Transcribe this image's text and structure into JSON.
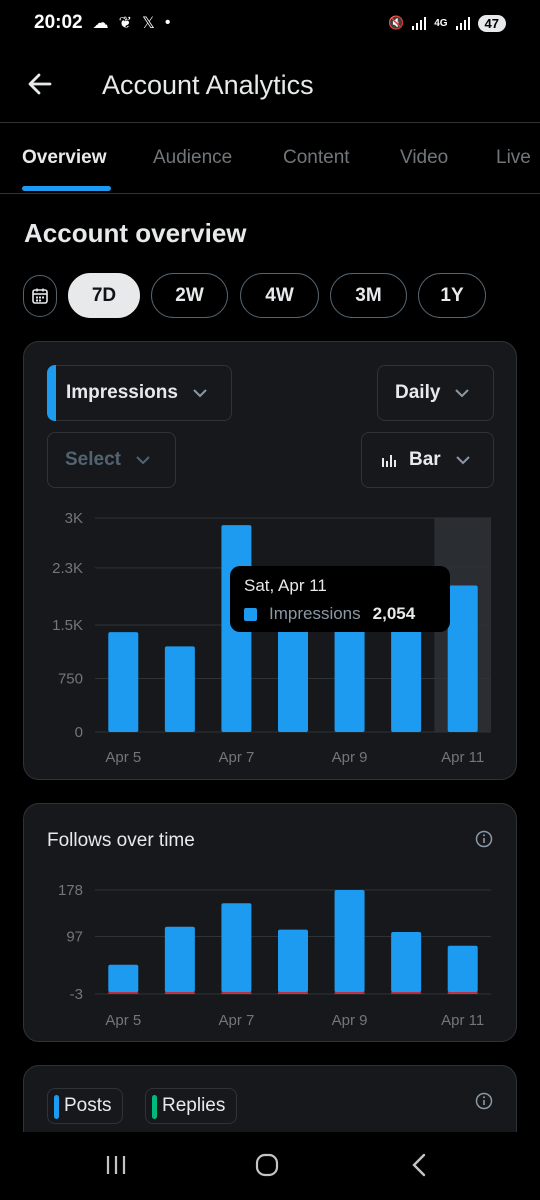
{
  "status_bar": {
    "time": "20:02",
    "battery": "47",
    "network": "4G"
  },
  "header": {
    "title": "Account Analytics"
  },
  "tabs": [
    {
      "label": "Overview",
      "active": true
    },
    {
      "label": "Audience",
      "active": false
    },
    {
      "label": "Content",
      "active": false
    },
    {
      "label": "Video",
      "active": false
    },
    {
      "label": "Live",
      "active": false
    }
  ],
  "overview": {
    "section_title": "Account overview",
    "ranges": [
      {
        "label": "7D",
        "active": true
      },
      {
        "label": "2W",
        "active": false
      },
      {
        "label": "4W",
        "active": false
      },
      {
        "label": "3M",
        "active": false
      },
      {
        "label": "1Y",
        "active": false
      }
    ],
    "metric_dropdown": "Impressions",
    "interval_dropdown": "Daily",
    "compare_dropdown_placeholder": "Select",
    "charttype_dropdown": "Bar",
    "tooltip": {
      "date": "Sat, Apr 11",
      "series": "Impressions",
      "value": "2,054"
    }
  },
  "follows_card": {
    "title": "Follows over time"
  },
  "posts_card": {
    "legend": [
      "Posts",
      "Replies"
    ]
  },
  "colors": {
    "accent": "#1d9bf0",
    "negative": "#f4212e",
    "replies": "#00ba7c",
    "card_bg": "#16181c"
  },
  "chart_data": [
    {
      "type": "bar",
      "title": "",
      "categories": [
        "Apr 5",
        "Apr 6",
        "Apr 7",
        "Apr 8",
        "Apr 9",
        "Apr 10",
        "Apr 11"
      ],
      "tick_labels_x": [
        "Apr 5",
        "",
        "Apr 7",
        "",
        "Apr 9",
        "",
        "Apr 11"
      ],
      "series": [
        {
          "name": "Impressions",
          "values": [
            1400,
            1200,
            2900,
            1600,
            1550,
            1500,
            2054
          ]
        }
      ],
      "y_ticks": [
        0,
        750,
        1500,
        2300,
        3000
      ],
      "y_tick_labels": [
        "0",
        "750",
        "1.5K",
        "2.3K",
        "3K"
      ],
      "ylim": [
        0,
        3000
      ],
      "highlight_index": 6,
      "grid": true
    },
    {
      "type": "bar",
      "title": "Follows over time",
      "categories": [
        "Apr 5",
        "Apr 6",
        "Apr 7",
        "Apr 8",
        "Apr 9",
        "Apr 10",
        "Apr 11"
      ],
      "tick_labels_x": [
        "Apr 5",
        "",
        "Apr 7",
        "",
        "Apr 9",
        "",
        "Apr 11"
      ],
      "series": [
        {
          "name": "",
          "values": [
            48,
            114,
            155,
            109,
            178,
            105,
            81
          ]
        },
        {
          "name": "",
          "values": [
            -2,
            -3,
            -3,
            -3,
            -3,
            -1,
            -3
          ]
        }
      ],
      "y_ticks": [
        -3,
        97,
        178
      ],
      "y_tick_labels": [
        "-3",
        "97",
        "178"
      ],
      "ylim": [
        -3,
        178
      ],
      "grid": true
    }
  ]
}
